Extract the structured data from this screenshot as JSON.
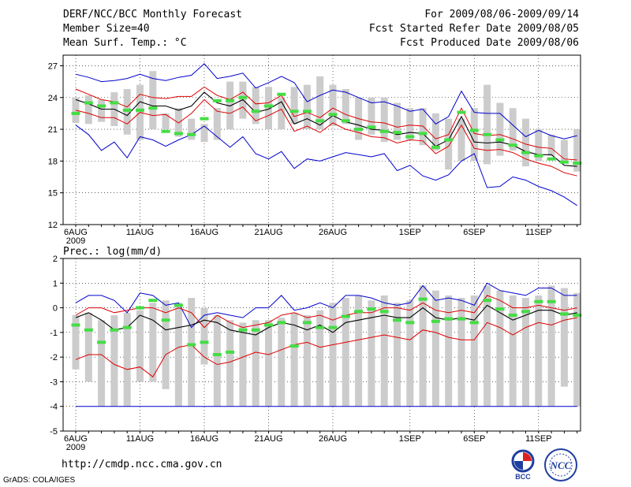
{
  "header": {
    "title": "DERF/NCC/BCC Monthly Forecast",
    "member": "Member Size=40",
    "var1": "Mean Surf. Temp.: °C",
    "period": "For 2009/08/06-2009/09/14",
    "started": "Fcst Started Refer Date 2009/08/05",
    "produced": "Fcst Produced Date 2009/08/06"
  },
  "footer": {
    "url": "http://cmdp.ncc.cma.gov.cn",
    "grads": "GrADS: COLA/IGES"
  },
  "logos": {
    "bcc": "BCC",
    "ncc": "NCC"
  },
  "colors": {
    "box": "#cccccc",
    "median": "#44dd44",
    "mean": "#000000",
    "spread": "#dd0000",
    "extreme": "#0000cc"
  },
  "chart_data": [
    {
      "type": "box-ensemble",
      "title": "Mean Surf. Temp.: °C",
      "ylim": [
        12,
        28
      ],
      "yticks": [
        12,
        15,
        18,
        21,
        24,
        27
      ],
      "xtick_labels": [
        "6AUG",
        "11AUG",
        "16AUG",
        "21AUG",
        "26AUG",
        "1SEP",
        "6SEP",
        "11SEP"
      ],
      "xtick_days": [
        1,
        6,
        11,
        16,
        21,
        27,
        32,
        37
      ],
      "year_label": "2009",
      "days": 40,
      "box_low": [
        21.6,
        21.5,
        21.7,
        21.3,
        20.5,
        20.0,
        21.0,
        21.0,
        20.3,
        20.0,
        19.8,
        20.0,
        21.0,
        22.0,
        21.5,
        21.0,
        21.0,
        21.5,
        21.0,
        21.0,
        21.3,
        21.5,
        20.0,
        20.5,
        19.8,
        20.0,
        20.0,
        19.5,
        19.0,
        17.2,
        18.0,
        18.0,
        17.7,
        18.5,
        19.0,
        17.5,
        18.0,
        18.5,
        17.9,
        17.0
      ],
      "box_high": [
        24.0,
        24.2,
        23.8,
        24.5,
        24.8,
        25.2,
        26.5,
        22.5,
        23.0,
        22.0,
        21.5,
        23.0,
        25.5,
        25.5,
        25.0,
        25.0,
        24.0,
        25.0,
        25.2,
        26.0,
        25.2,
        24.8,
        24.0,
        24.0,
        24.0,
        23.5,
        23.0,
        23.0,
        22.5,
        22.0,
        22.0,
        23.0,
        25.2,
        23.5,
        23.0,
        22.0,
        21.0,
        20.5,
        20.0,
        21.0
      ],
      "median": [
        22.5,
        23.5,
        23.2,
        23.5,
        22.8,
        22.8,
        23.0,
        20.8,
        20.6,
        20.5,
        22.0,
        23.7,
        23.7,
        24.0,
        22.7,
        23.2,
        24.3,
        22.7,
        22.7,
        21.8,
        22.4,
        21.8,
        21.0,
        21.2,
        20.8,
        20.7,
        20.3,
        20.6,
        19.3,
        20.0,
        22.6,
        20.9,
        20.5,
        20.0,
        19.5,
        18.8,
        18.5,
        18.2,
        17.9,
        17.8
      ],
      "mean": [
        23.8,
        23.4,
        22.9,
        22.9,
        22.3,
        23.6,
        23.2,
        23.2,
        22.8,
        23.2,
        24.5,
        23.5,
        23.2,
        23.8,
        22.6,
        22.9,
        23.6,
        21.5,
        22.0,
        21.4,
        22.3,
        21.7,
        21.4,
        21.0,
        20.9,
        20.5,
        20.7,
        20.6,
        19.4,
        20.0,
        22.2,
        19.8,
        19.7,
        19.8,
        19.5,
        18.9,
        18.6,
        18.6,
        17.6,
        17.5
      ],
      "spread_upper": [
        24.8,
        24.3,
        23.8,
        23.6,
        23.1,
        24.3,
        24.0,
        23.9,
        24.1,
        24.1,
        25.0,
        24.2,
        23.8,
        24.5,
        23.4,
        23.5,
        24.2,
        22.2,
        22.6,
        22.1,
        23.0,
        22.4,
        22.0,
        21.7,
        21.6,
        21.2,
        21.4,
        21.3,
        20.1,
        20.5,
        23.0,
        20.6,
        20.4,
        20.5,
        20.1,
        19.6,
        19.3,
        19.2,
        18.2,
        18.1
      ],
      "spread_lower": [
        22.8,
        22.5,
        22.1,
        22.1,
        21.5,
        22.6,
        22.3,
        22.4,
        21.6,
        22.5,
        23.8,
        22.7,
        22.5,
        23.1,
        21.8,
        22.3,
        22.9,
        20.8,
        21.3,
        20.7,
        21.6,
        21.0,
        20.7,
        20.3,
        20.2,
        19.7,
        20.0,
        19.9,
        18.7,
        19.4,
        21.4,
        19.2,
        19.0,
        19.1,
        18.8,
        18.2,
        17.8,
        17.5,
        16.9,
        16.6
      ],
      "max": [
        26.2,
        25.9,
        25.5,
        25.6,
        25.8,
        26.2,
        25.8,
        25.6,
        25.9,
        26.1,
        27.2,
        25.8,
        26.0,
        26.3,
        24.9,
        25.4,
        26.0,
        25.4,
        23.6,
        24.2,
        24.7,
        24.5,
        24.0,
        23.5,
        23.6,
        23.2,
        22.7,
        22.9,
        21.5,
        22.2,
        24.6,
        22.6,
        22.5,
        22.5,
        21.4,
        20.3,
        20.9,
        20.4,
        20.1,
        20.4
      ],
      "min": [
        21.4,
        20.5,
        19.0,
        19.8,
        18.3,
        20.3,
        20.0,
        19.4,
        20.0,
        20.5,
        21.3,
        20.3,
        19.3,
        20.3,
        18.7,
        18.2,
        18.9,
        17.3,
        18.2,
        18.0,
        18.4,
        18.8,
        18.6,
        18.4,
        18.7,
        17.1,
        17.6,
        16.6,
        16.2,
        16.7,
        18.0,
        18.7,
        15.5,
        15.6,
        16.5,
        16.2,
        15.6,
        15.2,
        14.6,
        13.8
      ]
    },
    {
      "type": "box-ensemble",
      "title": "Prec.: log(mm/d)",
      "ylim": [
        -5,
        2
      ],
      "yticks": [
        -5,
        -4,
        -3,
        -2,
        -1,
        0,
        1,
        2
      ],
      "xtick_labels": [
        "6AUG",
        "11AUG",
        "16AUG",
        "21AUG",
        "26AUG",
        "1SEP",
        "6SEP",
        "11SEP"
      ],
      "xtick_days": [
        1,
        6,
        11,
        16,
        21,
        27,
        32,
        37
      ],
      "year_label": "2009",
      "days": 40,
      "box_low": [
        -2.5,
        -3.0,
        -4.0,
        -4.0,
        -4.0,
        -3.0,
        -3.0,
        -3.3,
        -4.0,
        -4.0,
        -2.3,
        -4.0,
        -4.0,
        -4.0,
        -4.0,
        -4.0,
        -4.0,
        -4.0,
        -4.0,
        -4.0,
        -4.0,
        -4.0,
        -4.0,
        -4.0,
        -4.0,
        -4.0,
        -4.0,
        -4.0,
        -4.0,
        -4.0,
        -4.0,
        -4.0,
        -4.0,
        -4.0,
        -4.0,
        -4.0,
        -4.0,
        -4.0,
        -3.2,
        -4.0
      ],
      "box_high": [
        -0.3,
        -0.2,
        -0.5,
        -0.3,
        -0.2,
        -0.1,
        0.2,
        0.3,
        0.2,
        0.4,
        0.0,
        -0.3,
        -0.5,
        -0.6,
        -0.5,
        -0.5,
        -0.4,
        -0.2,
        -0.3,
        -0.1,
        0.2,
        0.4,
        0.5,
        0.3,
        0.5,
        0.2,
        0.3,
        0.9,
        0.7,
        0.5,
        0.4,
        0.5,
        0.9,
        0.7,
        0.5,
        0.4,
        0.5,
        0.9,
        0.8,
        0.6
      ],
      "median": [
        -0.7,
        -0.9,
        -1.4,
        -0.9,
        -0.8,
        0.0,
        0.3,
        -0.5,
        0.1,
        -1.5,
        -1.4,
        -1.9,
        -1.8,
        -0.9,
        -0.9,
        -0.7,
        -0.6,
        -1.55,
        -0.6,
        -0.8,
        -0.8,
        -0.35,
        -0.15,
        -0.05,
        -0.15,
        -0.5,
        -0.6,
        0.35,
        -0.55,
        -0.45,
        -0.45,
        -0.6,
        0.3,
        -0.05,
        -0.3,
        -0.15,
        0.25,
        0.25,
        -0.25,
        -0.3
      ],
      "mean": [
        -0.4,
        -0.2,
        -0.5,
        -0.9,
        -0.8,
        -0.3,
        -0.5,
        -0.9,
        -0.8,
        -0.7,
        -0.5,
        -0.6,
        -0.9,
        -1.0,
        -1.1,
        -0.8,
        -0.6,
        -0.7,
        -0.9,
        -0.7,
        -1.0,
        -0.6,
        -0.5,
        -0.4,
        -0.3,
        -0.4,
        -0.4,
        0.0,
        -0.4,
        -0.5,
        -0.4,
        -0.5,
        0.1,
        -0.2,
        -0.5,
        -0.3,
        -0.1,
        -0.1,
        -0.3,
        -0.2
      ],
      "spread_upper": [
        -0.3,
        0.0,
        0.0,
        -0.2,
        -0.1,
        0.0,
        0.0,
        -0.2,
        0.0,
        -0.2,
        -0.8,
        -0.3,
        -0.6,
        -0.8,
        -0.7,
        -0.6,
        -0.3,
        -0.2,
        -0.4,
        -0.3,
        -0.5,
        -0.3,
        -0.2,
        -0.2,
        0.0,
        0.0,
        -0.1,
        0.2,
        -0.1,
        -0.2,
        -0.1,
        -0.2,
        0.5,
        0.3,
        0.0,
        0.0,
        0.1,
        0.0,
        -0.1,
        0.0
      ],
      "spread_lower": [
        -2.1,
        -1.9,
        -1.9,
        -2.3,
        -2.5,
        -2.4,
        -2.8,
        -1.9,
        -1.6,
        -1.5,
        -2.0,
        -2.3,
        -2.2,
        -2.0,
        -1.8,
        -1.9,
        -1.7,
        -1.5,
        -1.4,
        -1.6,
        -1.5,
        -1.4,
        -1.3,
        -1.2,
        -1.1,
        -1.2,
        -1.3,
        -0.9,
        -1.0,
        -1.2,
        -1.3,
        -1.3,
        -0.6,
        -0.8,
        -1.1,
        -0.8,
        -0.6,
        -0.7,
        -0.5,
        -0.4
      ],
      "max": [
        0.2,
        0.5,
        0.5,
        0.3,
        -0.2,
        0.6,
        0.5,
        0.1,
        0.2,
        -0.8,
        -0.3,
        -0.2,
        -0.3,
        -0.4,
        0.0,
        0.0,
        0.5,
        -0.1,
        0.0,
        0.2,
        0.0,
        0.5,
        0.5,
        0.4,
        0.2,
        0.1,
        0.2,
        0.9,
        0.3,
        0.4,
        0.3,
        0.1,
        1.0,
        0.7,
        0.6,
        0.5,
        0.8,
        0.8,
        0.5,
        0.5
      ],
      "min": [
        -4.0,
        -4.0,
        -4.0,
        -4.0,
        -4.0,
        -4.0,
        -4.0,
        -4.0,
        -4.0,
        -4.0,
        -4.0,
        -4.0,
        -4.0,
        -4.0,
        -4.0,
        -4.0,
        -4.0,
        -4.0,
        -4.0,
        -4.0,
        -4.0,
        -4.0,
        -4.0,
        -4.0,
        -4.0,
        -4.0,
        -4.0,
        -4.0,
        -4.0,
        -4.0,
        -4.0,
        -4.0,
        -4.0,
        -4.0,
        -4.0,
        -4.0,
        -4.0,
        -4.0,
        -4.0,
        -4.0
      ]
    }
  ]
}
